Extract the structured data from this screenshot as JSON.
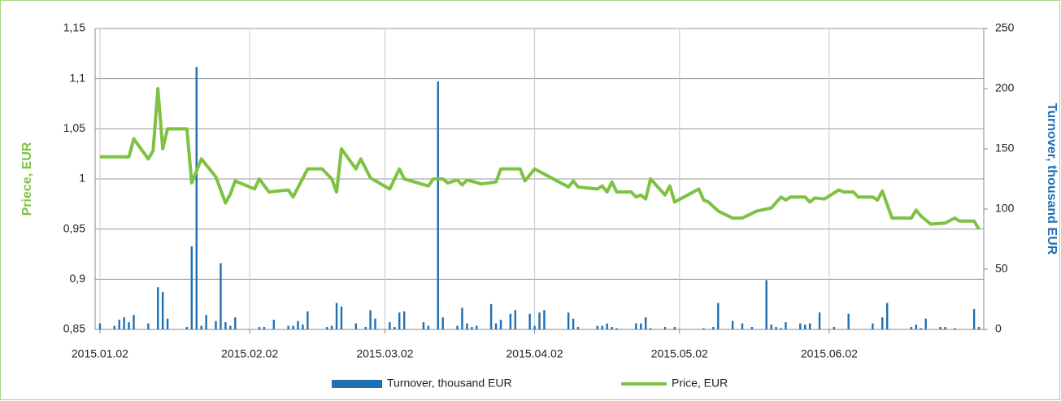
{
  "chart_data": {
    "type": "combo",
    "ylabel": "Priece, EUR",
    "y2label": "Turnover, thousand EUR",
    "xlim": [
      "2015.01.01",
      "2015.07.04"
    ],
    "xticks": [
      "2015.01.02",
      "2015.02.02",
      "2015.03.02",
      "2015.04.02",
      "2015.05.02",
      "2015.06.02"
    ],
    "ylim": [
      0.85,
      1.15
    ],
    "yticks": [
      {
        "value": 0.85,
        "label": "0,85"
      },
      {
        "value": 0.9,
        "label": "0,9"
      },
      {
        "value": 0.95,
        "label": "0,95"
      },
      1,
      {
        "value": 1.05,
        "label": "1,05"
      },
      {
        "value": 1.1,
        "label": "1,1"
      },
      {
        "value": 1.15,
        "label": "1,15"
      }
    ],
    "y2lim": [
      0,
      250
    ],
    "y2ticks": [
      0,
      50,
      100,
      150,
      200,
      250
    ],
    "grid": true,
    "xgrid": true,
    "legend": "bottom",
    "series": [
      {
        "name": "Turnover, thousand EUR",
        "type": "bar",
        "axis": "y2",
        "color": "#1f6fb2",
        "x": [
          "2015.01.02",
          "2015.01.05",
          "2015.01.06",
          "2015.01.07",
          "2015.01.08",
          "2015.01.09",
          "2015.01.12",
          "2015.01.14",
          "2015.01.15",
          "2015.01.16",
          "2015.01.20",
          "2015.01.21",
          "2015.01.22",
          "2015.01.23",
          "2015.01.24",
          "2015.01.26",
          "2015.01.27",
          "2015.01.28",
          "2015.01.29",
          "2015.01.30",
          "2015.02.04",
          "2015.02.05",
          "2015.02.07",
          "2015.02.10",
          "2015.02.11",
          "2015.02.12",
          "2015.02.13",
          "2015.02.14",
          "2015.02.18",
          "2015.02.19",
          "2015.02.20",
          "2015.02.21",
          "2015.02.24",
          "2015.02.26",
          "2015.02.27",
          "2015.02.28",
          "2015.03.03",
          "2015.03.04",
          "2015.03.05",
          "2015.03.06",
          "2015.03.10",
          "2015.03.11",
          "2015.03.13",
          "2015.03.14",
          "2015.03.17",
          "2015.03.18",
          "2015.03.19",
          "2015.03.20",
          "2015.03.21",
          "2015.03.24",
          "2015.03.25",
          "2015.03.26",
          "2015.03.28",
          "2015.03.29",
          "2015.04.01",
          "2015.04.02",
          "2015.04.03",
          "2015.04.04",
          "2015.04.09",
          "2015.04.10",
          "2015.04.11",
          "2015.04.15",
          "2015.04.16",
          "2015.04.17",
          "2015.04.18",
          "2015.04.19",
          "2015.04.23",
          "2015.04.24",
          "2015.04.25",
          "2015.04.26",
          "2015.04.29",
          "2015.05.01",
          "2015.05.07",
          "2015.05.09",
          "2015.05.10",
          "2015.05.13",
          "2015.05.15",
          "2015.05.17",
          "2015.05.20",
          "2015.05.21",
          "2015.05.22",
          "2015.05.23",
          "2015.05.24",
          "2015.05.27",
          "2015.05.28",
          "2015.05.29",
          "2015.05.31",
          "2015.06.03",
          "2015.06.06",
          "2015.06.11",
          "2015.06.13",
          "2015.06.14",
          "2015.06.19",
          "2015.06.20",
          "2015.06.21",
          "2015.06.22",
          "2015.06.25",
          "2015.06.26",
          "2015.06.28",
          "2015.07.02",
          "2015.07.03"
        ],
        "values": [
          5,
          3,
          8,
          10,
          6,
          12,
          5,
          35,
          31,
          9,
          2,
          69,
          218,
          3,
          12,
          7,
          55,
          6,
          3,
          10,
          2,
          2,
          8,
          3,
          3,
          7,
          4,
          15,
          2,
          3,
          22,
          19,
          5,
          2,
          16,
          9,
          6,
          2,
          14,
          15,
          6,
          3,
          206,
          10,
          3,
          18,
          5,
          2,
          3,
          21,
          5,
          8,
          13,
          16,
          13,
          3,
          14,
          16,
          14,
          9,
          2,
          3,
          3,
          5,
          2,
          1,
          5,
          5,
          10,
          1,
          2,
          2,
          1,
          2,
          22,
          7,
          5,
          2,
          41,
          4,
          2,
          1,
          6,
          5,
          4,
          5,
          14,
          2,
          13,
          5,
          10,
          22,
          2,
          4,
          1,
          9,
          2,
          2,
          1,
          17,
          2
        ]
      },
      {
        "name": "Price, EUR",
        "type": "line",
        "color": "#7dc242",
        "x": [
          "2015.01.02",
          "2015.01.08",
          "2015.01.09",
          "2015.01.12",
          "2015.01.13",
          "2015.01.14",
          "2015.01.15",
          "2015.01.16",
          "2015.01.20",
          "2015.01.21",
          "2015.01.23",
          "2015.01.26",
          "2015.01.28",
          "2015.01.29",
          "2015.01.30",
          "2015.02.03",
          "2015.02.04",
          "2015.02.06",
          "2015.02.10",
          "2015.02.11",
          "2015.02.14",
          "2015.02.17",
          "2015.02.19",
          "2015.02.20",
          "2015.02.21",
          "2015.02.24",
          "2015.02.25",
          "2015.02.27",
          "2015.03.03",
          "2015.03.05",
          "2015.03.06",
          "2015.03.11",
          "2015.03.12",
          "2015.03.14",
          "2015.03.15",
          "2015.03.17",
          "2015.03.18",
          "2015.03.19",
          "2015.03.22",
          "2015.03.25",
          "2015.03.26",
          "2015.03.30",
          "2015.03.31",
          "2015.04.02",
          "2015.04.09",
          "2015.04.10",
          "2015.04.11",
          "2015.04.15",
          "2015.04.16",
          "2015.04.17",
          "2015.04.18",
          "2015.04.19",
          "2015.04.22",
          "2015.04.23",
          "2015.04.24",
          "2015.04.25",
          "2015.04.26",
          "2015.04.29",
          "2015.04.30",
          "2015.05.01",
          "2015.05.06",
          "2015.05.07",
          "2015.05.08",
          "2015.05.10",
          "2015.05.13",
          "2015.05.15",
          "2015.05.18",
          "2015.05.21",
          "2015.05.23",
          "2015.05.24",
          "2015.05.25",
          "2015.05.28",
          "2015.05.29",
          "2015.05.30",
          "2015.06.01",
          "2015.06.04",
          "2015.06.05",
          "2015.06.07",
          "2015.06.08",
          "2015.06.11",
          "2015.06.12",
          "2015.06.13",
          "2015.06.15",
          "2015.06.19",
          "2015.06.20",
          "2015.06.21",
          "2015.06.23",
          "2015.06.26",
          "2015.06.28",
          "2015.06.29",
          "2015.07.02",
          "2015.07.03"
        ],
        "values": [
          1.022,
          1.022,
          1.04,
          1.02,
          1.028,
          1.09,
          1.03,
          1.05,
          1.05,
          0.996,
          1.02,
          1.002,
          0.976,
          0.985,
          0.998,
          0.99,
          1.0,
          0.987,
          0.989,
          0.982,
          1.01,
          1.01,
          1.0,
          0.987,
          1.03,
          1.01,
          1.02,
          1.001,
          0.99,
          1.01,
          1.0,
          0.993,
          1.0,
          1.0,
          0.996,
          0.999,
          0.994,
          0.999,
          0.995,
          0.997,
          1.01,
          1.01,
          0.998,
          1.01,
          0.992,
          0.998,
          0.992,
          0.99,
          0.993,
          0.987,
          0.997,
          0.987,
          0.987,
          0.982,
          0.984,
          0.98,
          1.0,
          0.984,
          0.993,
          0.977,
          0.99,
          0.979,
          0.977,
          0.968,
          0.961,
          0.961,
          0.968,
          0.971,
          0.982,
          0.979,
          0.982,
          0.982,
          0.977,
          0.981,
          0.98,
          0.989,
          0.987,
          0.987,
          0.982,
          0.982,
          0.979,
          0.988,
          0.961,
          0.961,
          0.969,
          0.963,
          0.955,
          0.956,
          0.961,
          0.958,
          0.958,
          0.95
        ]
      }
    ]
  }
}
